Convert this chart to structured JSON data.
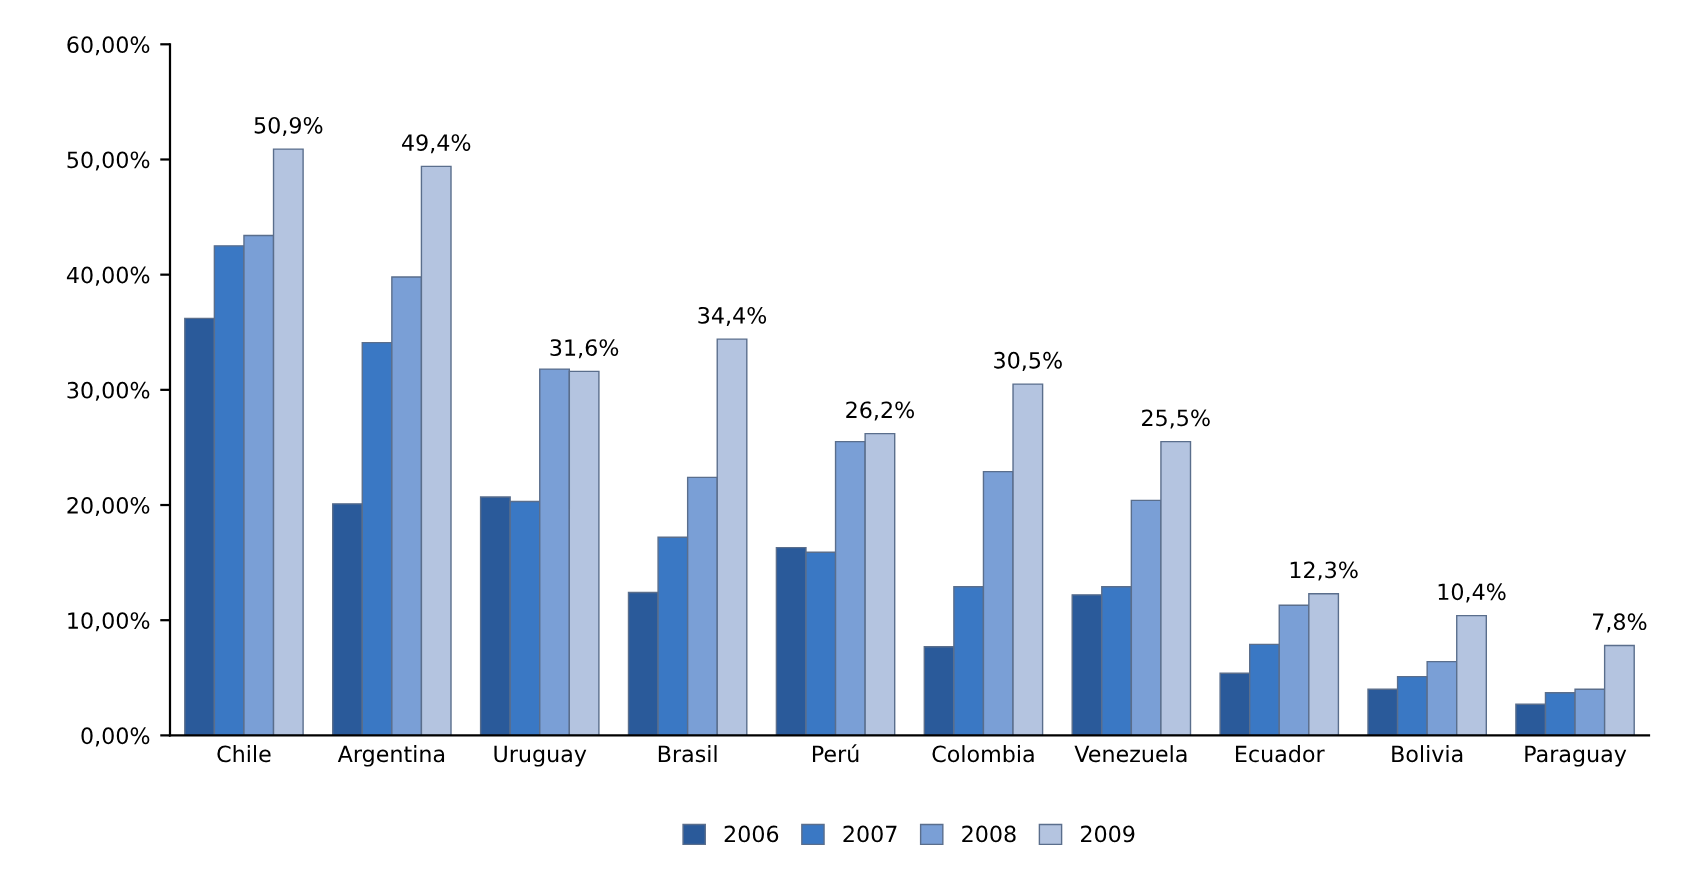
{
  "chart_data": {
    "type": "bar",
    "categories": [
      "Chile",
      "Argentina",
      "Uruguay",
      "Brasil",
      "Perú",
      "Colombia",
      "Venezuela",
      "Ecuador",
      "Bolivia",
      "Paraguay"
    ],
    "series": [
      {
        "name": "2006",
        "color": "#2a5a9a",
        "values": [
          36.2,
          20.1,
          20.7,
          12.4,
          16.3,
          7.7,
          12.2,
          5.4,
          4.0,
          2.7
        ]
      },
      {
        "name": "2007",
        "color": "#3a78c4",
        "values": [
          42.5,
          34.1,
          20.3,
          17.2,
          15.9,
          12.9,
          12.9,
          7.9,
          5.1,
          3.7
        ]
      },
      {
        "name": "2008",
        "color": "#7a9fd6",
        "values": [
          43.4,
          39.8,
          31.8,
          22.4,
          25.5,
          22.9,
          20.4,
          11.3,
          6.4,
          4.0
        ]
      },
      {
        "name": "2009",
        "color": "#b4c4e0",
        "values": [
          50.9,
          49.4,
          31.6,
          34.4,
          26.2,
          30.5,
          25.5,
          12.3,
          10.4,
          7.8
        ],
        "value_labels": [
          "50,9%",
          "49,4%",
          "31,6%",
          "34,4%",
          "26,2%",
          "30,5%",
          "25,5%",
          "12,3%",
          "10,4%",
          "7,8%"
        ]
      }
    ],
    "ylim": [
      0,
      60
    ],
    "yticks": [
      {
        "value": 0,
        "label": "0,00%"
      },
      {
        "value": 10,
        "label": "10,00%"
      },
      {
        "value": 20,
        "label": "20,00%"
      },
      {
        "value": 30,
        "label": "30,00%"
      },
      {
        "value": 40,
        "label": "40,00%"
      },
      {
        "value": 50,
        "label": "50,00%"
      },
      {
        "value": 60,
        "label": "60,00%"
      }
    ],
    "grid": false,
    "legend": "bottom"
  }
}
